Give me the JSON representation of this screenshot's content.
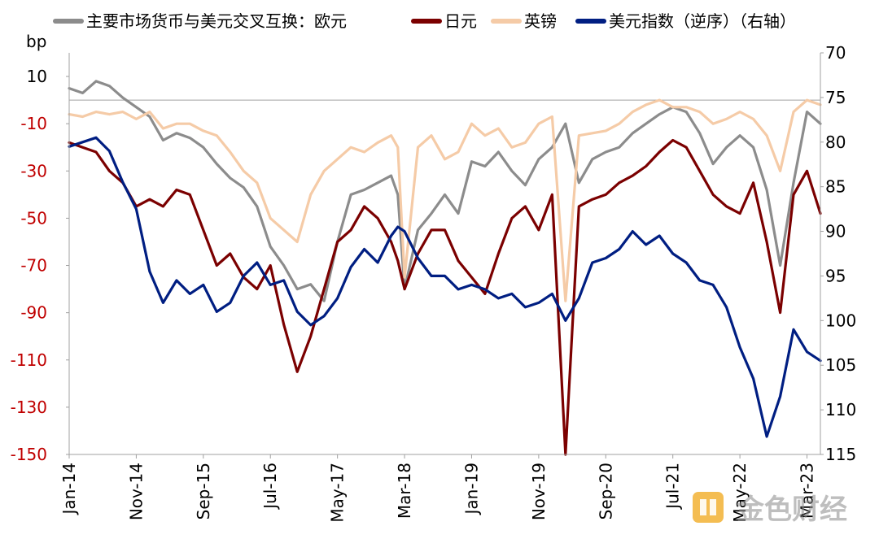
{
  "chart_data": {
    "type": "line",
    "title": "",
    "left_axis": {
      "label": "bp",
      "ticks": [
        10,
        -10,
        -30,
        -50,
        -70,
        -90,
        -110,
        -130,
        -150
      ],
      "red_ticks": [
        -10,
        -30,
        -50,
        -70,
        -90,
        -110,
        -130,
        -150
      ],
      "range": [
        -150,
        20
      ]
    },
    "right_axis": {
      "label": "",
      "ticks": [
        70,
        75,
        80,
        85,
        90,
        95,
        100,
        105,
        110,
        115
      ],
      "range": [
        70,
        115
      ],
      "reversed": true
    },
    "x_axis": {
      "tick_labels": [
        "Jan-14",
        "Nov-14",
        "Sep-15",
        "Jul-16",
        "May-17",
        "Mar-18",
        "Jan-19",
        "Nov-19",
        "Sep-20",
        "Jul-21",
        "May-22",
        "Mar-23"
      ],
      "range": [
        "2014-01",
        "2023-05"
      ],
      "tick_interval_months": 10
    },
    "zero_line": 0,
    "series": [
      {
        "name": "主要市场货币与美元交叉互换：欧元",
        "axis": "left",
        "color": "#8C8C8C",
        "x": [
          "2014-01",
          "2014-03",
          "2014-05",
          "2014-07",
          "2014-09",
          "2014-11",
          "2015-01",
          "2015-03",
          "2015-05",
          "2015-07",
          "2015-09",
          "2015-11",
          "2016-01",
          "2016-03",
          "2016-05",
          "2016-07",
          "2016-09",
          "2016-11",
          "2017-01",
          "2017-03",
          "2017-05",
          "2017-07",
          "2017-09",
          "2017-11",
          "2018-01",
          "2018-02",
          "2018-03",
          "2018-05",
          "2018-07",
          "2018-09",
          "2018-11",
          "2019-01",
          "2019-03",
          "2019-05",
          "2019-07",
          "2019-09",
          "2019-11",
          "2020-01",
          "2020-03",
          "2020-05",
          "2020-07",
          "2020-09",
          "2020-11",
          "2021-01",
          "2021-03",
          "2021-05",
          "2021-07",
          "2021-09",
          "2021-11",
          "2022-01",
          "2022-03",
          "2022-05",
          "2022-07",
          "2022-09",
          "2022-11",
          "2023-01",
          "2023-03",
          "2023-05"
        ],
        "values": [
          5,
          3,
          8,
          6,
          1,
          -3,
          -7,
          -17,
          -14,
          -16,
          -20,
          -27,
          -33,
          -37,
          -45,
          -62,
          -70,
          -80,
          -78,
          -85,
          -60,
          -40,
          -38,
          -35,
          -32,
          -40,
          -80,
          -55,
          -48,
          -40,
          -48,
          -26,
          -28,
          -22,
          -30,
          -36,
          -25,
          -20,
          -10,
          -35,
          -25,
          -22,
          -20,
          -14,
          -10,
          -6,
          -3,
          -5,
          -14,
          -27,
          -20,
          -15,
          -20,
          -38,
          -70,
          -35,
          -5,
          -10
        ]
      },
      {
        "name": "日元",
        "axis": "left",
        "color": "#7B0000",
        "x": [
          "2014-01",
          "2014-03",
          "2014-05",
          "2014-07",
          "2014-09",
          "2014-11",
          "2015-01",
          "2015-03",
          "2015-05",
          "2015-07",
          "2015-09",
          "2015-11",
          "2016-01",
          "2016-03",
          "2016-05",
          "2016-07",
          "2016-09",
          "2016-11",
          "2017-01",
          "2017-03",
          "2017-05",
          "2017-07",
          "2017-09",
          "2017-11",
          "2018-01",
          "2018-02",
          "2018-03",
          "2018-05",
          "2018-07",
          "2018-09",
          "2018-11",
          "2019-01",
          "2019-03",
          "2019-05",
          "2019-07",
          "2019-09",
          "2019-11",
          "2020-01",
          "2020-03",
          "2020-05",
          "2020-07",
          "2020-09",
          "2020-11",
          "2021-01",
          "2021-03",
          "2021-05",
          "2021-07",
          "2021-09",
          "2021-11",
          "2022-01",
          "2022-03",
          "2022-05",
          "2022-07",
          "2022-09",
          "2022-11",
          "2023-01",
          "2023-03",
          "2023-05"
        ],
        "values": [
          -18,
          -20,
          -22,
          -30,
          -35,
          -45,
          -42,
          -45,
          -38,
          -40,
          -55,
          -70,
          -65,
          -75,
          -80,
          -70,
          -95,
          -115,
          -100,
          -80,
          -60,
          -55,
          -45,
          -50,
          -60,
          -68,
          -80,
          -65,
          -55,
          -55,
          -68,
          -75,
          -82,
          -65,
          -50,
          -45,
          -55,
          -40,
          -150,
          -45,
          -42,
          -40,
          -35,
          -32,
          -28,
          -22,
          -17,
          -20,
          -30,
          -40,
          -45,
          -48,
          -35,
          -60,
          -90,
          -40,
          -30,
          -48
        ]
      },
      {
        "name": "英镑",
        "axis": "left",
        "color": "#F5CBA7",
        "x": [
          "2014-01",
          "2014-03",
          "2014-05",
          "2014-07",
          "2014-09",
          "2014-11",
          "2015-01",
          "2015-03",
          "2015-05",
          "2015-07",
          "2015-09",
          "2015-11",
          "2016-01",
          "2016-03",
          "2016-05",
          "2016-07",
          "2016-09",
          "2016-11",
          "2017-01",
          "2017-03",
          "2017-05",
          "2017-07",
          "2017-09",
          "2017-11",
          "2018-01",
          "2018-02",
          "2018-03",
          "2018-05",
          "2018-07",
          "2018-09",
          "2018-11",
          "2019-01",
          "2019-03",
          "2019-05",
          "2019-07",
          "2019-09",
          "2019-11",
          "2020-01",
          "2020-03",
          "2020-05",
          "2020-07",
          "2020-09",
          "2020-11",
          "2021-01",
          "2021-03",
          "2021-05",
          "2021-07",
          "2021-09",
          "2021-11",
          "2022-01",
          "2022-03",
          "2022-05",
          "2022-07",
          "2022-09",
          "2022-11",
          "2023-01",
          "2023-03",
          "2023-05"
        ],
        "values": [
          -6,
          -7,
          -5,
          -6,
          -5,
          -8,
          -5,
          -12,
          -10,
          -10,
          -13,
          -15,
          -22,
          -30,
          -35,
          -50,
          -55,
          -60,
          -40,
          -30,
          -25,
          -20,
          -22,
          -18,
          -15,
          -20,
          -75,
          -20,
          -15,
          -25,
          -22,
          -10,
          -15,
          -12,
          -20,
          -18,
          -10,
          -7,
          -85,
          -15,
          -14,
          -13,
          -10,
          -5,
          -2,
          0,
          -3,
          -3,
          -5,
          -10,
          -8,
          -5,
          -8,
          -15,
          -30,
          -5,
          0,
          -2
        ]
      },
      {
        "name": "美元指数（逆序）（右轴）",
        "axis": "right",
        "color": "#001E82",
        "x": [
          "2014-01",
          "2014-03",
          "2014-05",
          "2014-07",
          "2014-09",
          "2014-11",
          "2015-01",
          "2015-03",
          "2015-05",
          "2015-07",
          "2015-09",
          "2015-11",
          "2016-01",
          "2016-03",
          "2016-05",
          "2016-07",
          "2016-09",
          "2016-11",
          "2017-01",
          "2017-03",
          "2017-05",
          "2017-07",
          "2017-09",
          "2017-11",
          "2018-01",
          "2018-02",
          "2018-03",
          "2018-05",
          "2018-07",
          "2018-09",
          "2018-11",
          "2019-01",
          "2019-03",
          "2019-05",
          "2019-07",
          "2019-09",
          "2019-11",
          "2020-01",
          "2020-03",
          "2020-05",
          "2020-07",
          "2020-09",
          "2020-11",
          "2021-01",
          "2021-03",
          "2021-05",
          "2021-07",
          "2021-09",
          "2021-11",
          "2022-01",
          "2022-03",
          "2022-05",
          "2022-07",
          "2022-09",
          "2022-11",
          "2023-01",
          "2023-03",
          "2023-05"
        ],
        "values": [
          80.5,
          80.0,
          79.5,
          81.0,
          84.5,
          87.5,
          94.5,
          98.0,
          95.5,
          97.0,
          96.0,
          99.0,
          98.0,
          95.0,
          93.5,
          96.0,
          95.5,
          99.0,
          100.5,
          99.5,
          97.5,
          94.0,
          92.0,
          93.5,
          90.5,
          89.5,
          90.0,
          93.0,
          95.0,
          95.0,
          96.5,
          96.0,
          96.5,
          97.5,
          97.0,
          98.5,
          98.0,
          97.0,
          100.0,
          97.5,
          93.5,
          93.0,
          92.0,
          90.0,
          91.5,
          90.5,
          92.5,
          93.5,
          95.5,
          96.0,
          98.5,
          103.0,
          106.5,
          113.0,
          108.5,
          101.0,
          103.5,
          104.5
        ]
      }
    ],
    "legend_position": "top",
    "grid": false
  },
  "watermark": {
    "text": "金色财经",
    "icon": "jinse-logo-icon"
  }
}
